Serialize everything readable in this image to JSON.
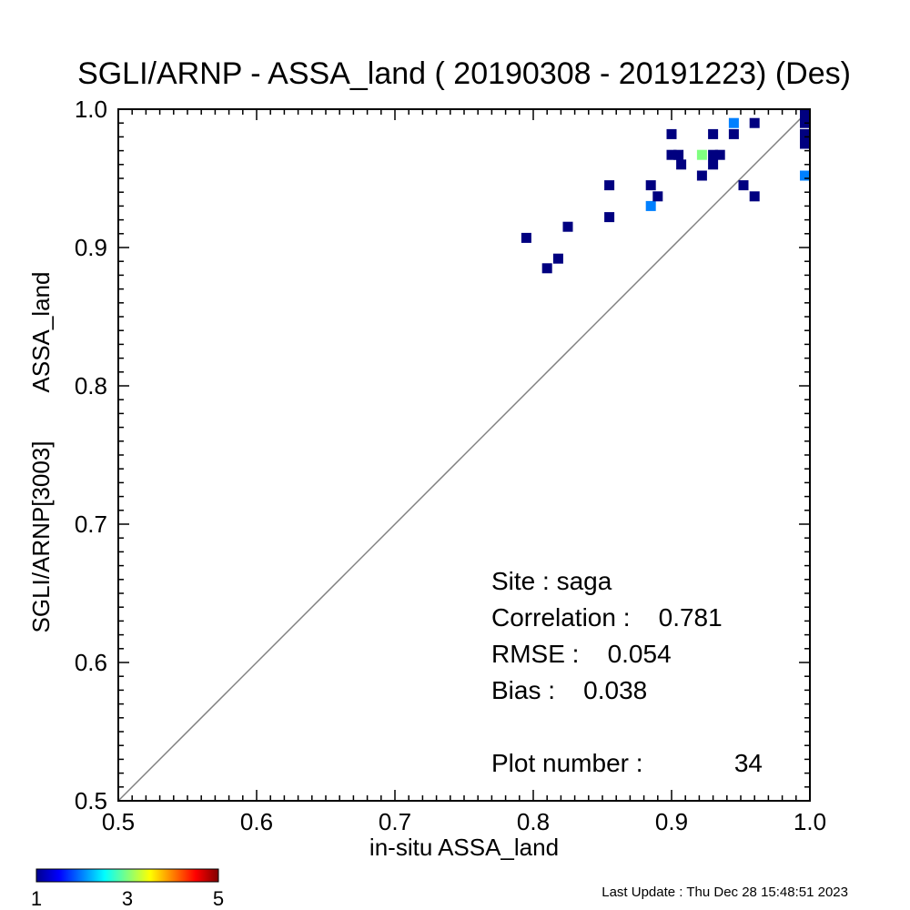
{
  "chart_data": {
    "type": "heatmap",
    "title": "SGLI/ARNP - ASSA_land ( 20190308 - 20191223) (Des)",
    "xlabel": "in-situ ASSA_land",
    "ylabel_line1": "SGLI/ARNP[3003]",
    "ylabel_line2": "ASSA_land",
    "xlim": [
      0.5,
      1.0
    ],
    "ylim": [
      0.5,
      1.0
    ],
    "xticks": [
      "0.5",
      "0.6",
      "0.7",
      "0.8",
      "0.9",
      "1.0"
    ],
    "yticks": [
      "0.5",
      "0.6",
      "0.7",
      "0.8",
      "0.9",
      "1.0"
    ],
    "one_to_one_line": true,
    "colorbar": {
      "min": 1,
      "max": 5,
      "ticks": [
        "1",
        "3",
        "5"
      ]
    },
    "cells": [
      {
        "x": 0.795,
        "y": 0.907,
        "count": 1
      },
      {
        "x": 0.81,
        "y": 0.885,
        "count": 1
      },
      {
        "x": 0.818,
        "y": 0.892,
        "count": 1
      },
      {
        "x": 0.825,
        "y": 0.915,
        "count": 1
      },
      {
        "x": 0.855,
        "y": 0.945,
        "count": 1
      },
      {
        "x": 0.855,
        "y": 0.922,
        "count": 1
      },
      {
        "x": 0.885,
        "y": 0.945,
        "count": 1
      },
      {
        "x": 0.885,
        "y": 0.93,
        "count": 2
      },
      {
        "x": 0.89,
        "y": 0.937,
        "count": 1
      },
      {
        "x": 0.9,
        "y": 0.982,
        "count": 1
      },
      {
        "x": 0.9,
        "y": 0.967,
        "count": 1
      },
      {
        "x": 0.905,
        "y": 0.967,
        "count": 1
      },
      {
        "x": 0.907,
        "y": 0.96,
        "count": 1
      },
      {
        "x": 0.922,
        "y": 0.967,
        "count": 3
      },
      {
        "x": 0.922,
        "y": 0.952,
        "count": 1
      },
      {
        "x": 0.93,
        "y": 0.982,
        "count": 1
      },
      {
        "x": 0.93,
        "y": 0.967,
        "count": 1
      },
      {
        "x": 0.93,
        "y": 0.96,
        "count": 1
      },
      {
        "x": 0.935,
        "y": 0.967,
        "count": 1
      },
      {
        "x": 0.945,
        "y": 0.99,
        "count": 2
      },
      {
        "x": 0.945,
        "y": 0.982,
        "count": 1
      },
      {
        "x": 0.952,
        "y": 0.945,
        "count": 1
      },
      {
        "x": 0.96,
        "y": 0.99,
        "count": 1
      },
      {
        "x": 0.96,
        "y": 0.937,
        "count": 1
      },
      {
        "x": 0.997,
        "y": 0.997,
        "count": 1
      },
      {
        "x": 0.997,
        "y": 0.99,
        "count": 1
      },
      {
        "x": 0.997,
        "y": 0.982,
        "count": 1
      },
      {
        "x": 0.997,
        "y": 0.975,
        "count": 1
      },
      {
        "x": 0.997,
        "y": 0.952,
        "count": 2
      }
    ]
  },
  "stats": {
    "site": "Site : saga",
    "correlation": "Correlation :    0.781",
    "rmse": "RMSE :    0.054",
    "bias": "Bias :    0.038",
    "plot_number_label": "Plot number :",
    "plot_number_value": "34"
  },
  "footer": {
    "last_update": "Last Update : Thu Dec 28 15:48:51 2023"
  }
}
